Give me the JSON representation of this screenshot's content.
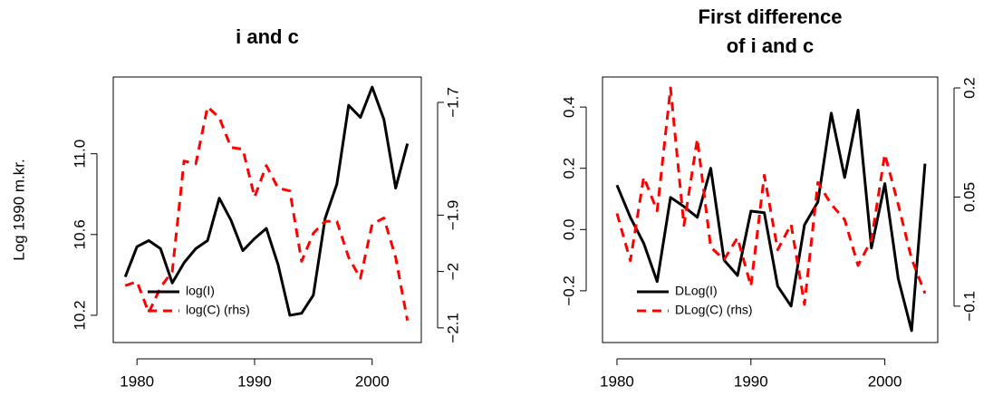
{
  "chart_data": [
    {
      "type": "line",
      "title": [
        "i and c"
      ],
      "ylabel": "Log 1990 m.kr.",
      "x": [
        1979,
        1980,
        1981,
        1982,
        1983,
        1984,
        1985,
        1986,
        1987,
        1988,
        1989,
        1990,
        1991,
        1992,
        1993,
        1994,
        1995,
        1996,
        1997,
        1998,
        1999,
        2000,
        2001,
        2002,
        2003
      ],
      "series": [
        {
          "name": "log(I)",
          "color": "#000000",
          "linestyle": "solid",
          "axis": "y",
          "values": [
            10.39,
            10.54,
            10.57,
            10.53,
            10.36,
            10.46,
            10.53,
            10.57,
            10.78,
            10.67,
            10.52,
            10.58,
            10.63,
            10.45,
            10.2,
            10.21,
            10.3,
            10.68,
            10.85,
            11.24,
            11.18,
            11.33,
            11.17,
            10.83,
            11.05
          ]
        },
        {
          "name": "log(C) (rhs)",
          "color": "#ff0000",
          "linestyle": "dashed",
          "axis": "y2",
          "values": [
            -2.025,
            -2.018,
            -2.073,
            -2.028,
            -2.0,
            -1.804,
            -1.809,
            -1.708,
            -1.727,
            -1.78,
            -1.783,
            -1.868,
            -1.812,
            -1.852,
            -1.857,
            -1.982,
            -1.932,
            -1.911,
            -1.911,
            -1.975,
            -2.012,
            -1.916,
            -1.905,
            -1.975,
            -2.087
          ]
        }
      ],
      "xlim": [
        1977.98,
        2004.18
      ],
      "xticks": [
        1980,
        1990,
        2000
      ],
      "ylim": [
        10.065,
        11.38
      ],
      "yticks": [
        10.2,
        10.6,
        {
          "value": 11.0,
          "label": "11.0"
        }
      ],
      "y2lim": [
        -2.126,
        -1.655
      ],
      "y2ticks": [
        {
          "value": -2.1,
          "label": "−2.1"
        },
        {
          "value": -2,
          "label": "−2"
        },
        {
          "value": -1.9,
          "label": "−1.9"
        },
        {
          "value": -1.7,
          "label": "−1.7"
        }
      ],
      "legend": "bottomleft"
    },
    {
      "type": "line",
      "title": [
        "First difference",
        "of i and c"
      ],
      "x": [
        1980,
        1981,
        1982,
        1983,
        1984,
        1985,
        1986,
        1987,
        1988,
        1989,
        1990,
        1991,
        1992,
        1993,
        1994,
        1995,
        1996,
        1997,
        1998,
        1999,
        2000,
        2001,
        2002,
        2003
      ],
      "series": [
        {
          "name": "DLog(I)",
          "color": "#000000",
          "linestyle": "solid",
          "axis": "y",
          "values": [
            0.145,
            0.04,
            -0.045,
            -0.17,
            0.105,
            0.075,
            0.04,
            0.2,
            -0.1,
            -0.15,
            0.06,
            0.055,
            -0.185,
            -0.25,
            0.015,
            0.09,
            0.38,
            0.17,
            0.39,
            -0.06,
            0.15,
            -0.16,
            -0.33,
            0.215
          ]
        },
        {
          "name": "DLog(C) (rhs)",
          "color": "#ff0000",
          "linestyle": "dashed",
          "axis": "y2",
          "values": [
            0.0275,
            -0.0375,
            0.0775,
            0.031,
            0.2,
            0.011,
            0.13,
            -0.019,
            -0.036,
            -0.006,
            -0.0725,
            0.08,
            -0.0225,
            0.0125,
            -0.0975,
            0.07,
            0.04,
            0.019,
            -0.044,
            -0.009,
            0.109,
            0.04,
            -0.035,
            -0.0825
          ]
        }
      ],
      "xlim": [
        1978.92,
        2003.95
      ],
      "xticks": [
        1980,
        1990,
        2000
      ],
      "ylim": [
        -0.369,
        0.498
      ],
      "yticks": [
        {
          "value": -0.2,
          "label": "−0.2"
        },
        {
          "value": 0.0,
          "label": "0.0"
        },
        0.2,
        0.4
      ],
      "y2lim": [
        -0.15,
        0.215
      ],
      "y2ticks": [
        {
          "value": -0.1,
          "label": "−0.1"
        },
        0.05,
        0.2
      ],
      "legend": "bottomleft"
    }
  ]
}
